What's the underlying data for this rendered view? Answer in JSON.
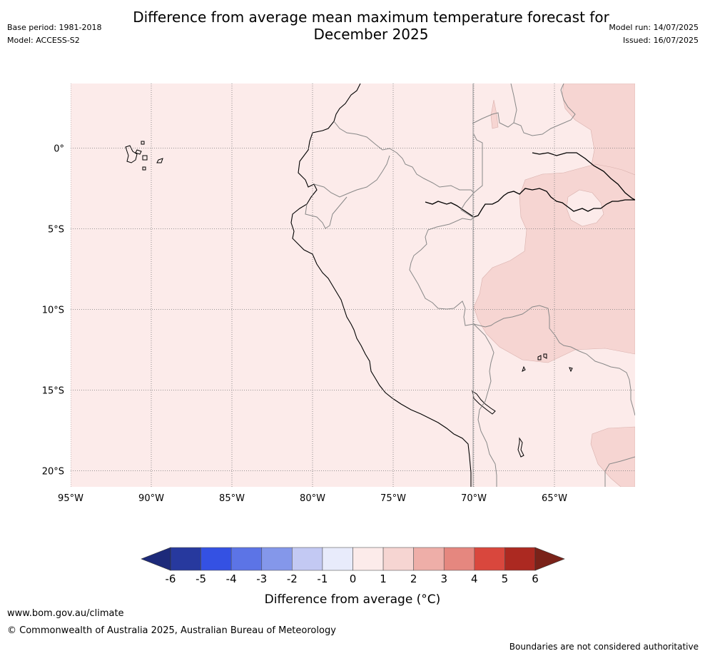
{
  "title_line1": "Difference from average mean maximum temperature forecast for",
  "title_line2": "December 2025",
  "base_period": "Base period: 1981-2018",
  "model": "Model: ACCESS-S2",
  "model_run": "Model run: 14/07/2025",
  "issued": "Issued: 16/07/2025",
  "map": {
    "lon_range": [
      -95,
      -60
    ],
    "lat_range": [
      -21,
      4
    ],
    "lon_ticks": [
      {
        "value": -95,
        "label": "95°W"
      },
      {
        "value": -90,
        "label": "90°W"
      },
      {
        "value": -85,
        "label": "85°W"
      },
      {
        "value": -80,
        "label": "80°W"
      },
      {
        "value": -75,
        "label": "75°W"
      },
      {
        "value": -70,
        "label": "70°W"
      },
      {
        "value": -65,
        "label": "65°W"
      }
    ],
    "lat_ticks": [
      {
        "value": 0,
        "label": "0°"
      },
      {
        "value": -5,
        "label": "5°S"
      },
      {
        "value": -10,
        "label": "10°S"
      },
      {
        "value": -15,
        "label": "15°S"
      },
      {
        "value": -20,
        "label": "20°S"
      }
    ],
    "gridlines": "dotted",
    "background_category": "0 to 1",
    "regions": [
      {
        "category": "1 to 2",
        "area": "Amazon basin, eastern half"
      },
      {
        "category": "0 to 1",
        "area": "remainder"
      }
    ]
  },
  "colorbar": {
    "label": "Difference from average (°C)",
    "tick_labels": [
      "-6",
      "-5",
      "-4",
      "-3",
      "-2",
      "-1",
      "0",
      "1",
      "2",
      "3",
      "4",
      "5",
      "6"
    ],
    "colors": [
      "#27399e",
      "#3451e3",
      "#5c74e6",
      "#8497ea",
      "#c3c9f3",
      "#e8ebfb",
      "#fcebea",
      "#f6d5d2",
      "#eeaea8",
      "#e5877f",
      "#d9473d",
      "#ac2921"
    ],
    "under_color": "#1d2a7a",
    "over_color": "#7a2219"
  },
  "website": "www.bom.gov.au/climate",
  "copyright": "© Commonwealth of Australia 2025, Australian Bureau of Meteorology",
  "disclaimer": "Boundaries are not considered authoritative"
}
